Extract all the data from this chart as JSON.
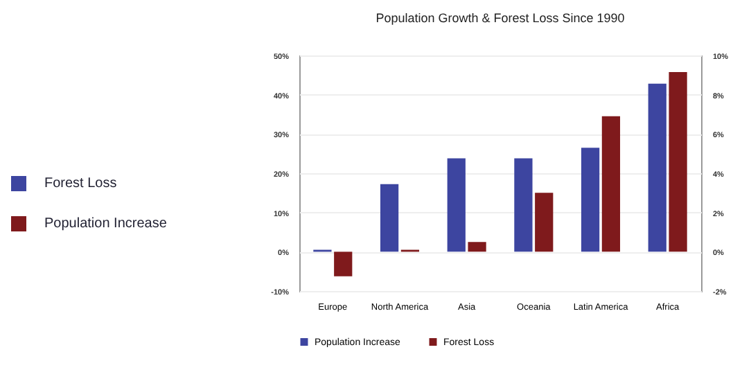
{
  "chart_data": {
    "type": "bar",
    "title": "Population Growth & Forest Loss Since 1990",
    "categories": [
      "Europe",
      "North America",
      "Asia",
      "Oceania",
      "Latin America",
      "Africa"
    ],
    "series": [
      {
        "name": "Population Increase",
        "color": "#3d45a0",
        "values": [
          0.5,
          17.2,
          23.8,
          23.8,
          26.5,
          42.8
        ]
      },
      {
        "name": "Forest Loss",
        "color": "#7f1a1c",
        "axis": "y2",
        "values": [
          -1.25,
          0.1,
          0.5,
          3.0,
          6.9,
          9.15
        ]
      }
    ],
    "ylim": [
      -10,
      50
    ],
    "yticks": [
      {
        "value": -10,
        "label": "-10%"
      },
      {
        "value": 0,
        "label": "0%"
      },
      {
        "value": 10,
        "label": "10%"
      },
      {
        "value": 20,
        "label": "20%"
      },
      {
        "value": 30,
        "label": "30%"
      },
      {
        "value": 40,
        "label": "40%"
      },
      {
        "value": 50,
        "label": "50%"
      }
    ],
    "y2lim": [
      -2,
      10
    ],
    "y2ticks": [
      {
        "value": -2,
        "label": "-2%"
      },
      {
        "value": 0,
        "label": "0%"
      },
      {
        "value": 2,
        "label": "2%"
      },
      {
        "value": 4,
        "label": "4%"
      },
      {
        "value": 6,
        "label": "6%"
      },
      {
        "value": 8,
        "label": "8%"
      },
      {
        "value": 10,
        "label": "10%"
      }
    ],
    "grid": "y",
    "legend": "bottom",
    "annotations": [
      "Forest Loss",
      "Population Increase"
    ]
  }
}
